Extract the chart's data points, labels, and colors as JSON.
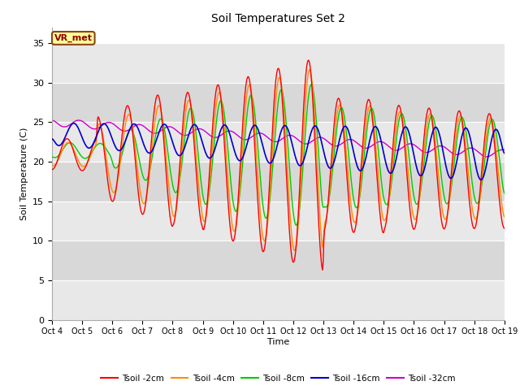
{
  "title": "Soil Temperatures Set 2",
  "xlabel": "Time",
  "ylabel": "Soil Temperature (C)",
  "ylim": [
    0,
    37
  ],
  "yticks": [
    0,
    5,
    10,
    15,
    20,
    25,
    30,
    35
  ],
  "plot_bg_color": "#ffffff",
  "band_colors": [
    "#e8e8e8",
    "#d8d8d8"
  ],
  "annotation_text": "VR_met",
  "annotation_bg": "#ffff99",
  "annotation_border": "#8b4513",
  "line_colors": {
    "2cm": "#ff0000",
    "4cm": "#ff8c00",
    "8cm": "#00cc00",
    "16cm": "#0000cc",
    "32cm": "#cc00cc"
  },
  "legend_labels": [
    "Tsoil -2cm",
    "Tsoil -4cm",
    "Tsoil -8cm",
    "Tsoil -16cm",
    "Tsoil -32cm"
  ],
  "x_tick_labels": [
    "Oct 4",
    "Oct 5",
    "Oct 6",
    "Oct 7",
    "Oct 8",
    "Oct 9",
    "Oct 10",
    "Oct 11",
    "Oct 12",
    "Oct 13",
    "Oct 14",
    "Oct 15",
    "Oct 16",
    "Oct 17",
    "Oct 18",
    "Oct 19"
  ],
  "n_points": 720
}
